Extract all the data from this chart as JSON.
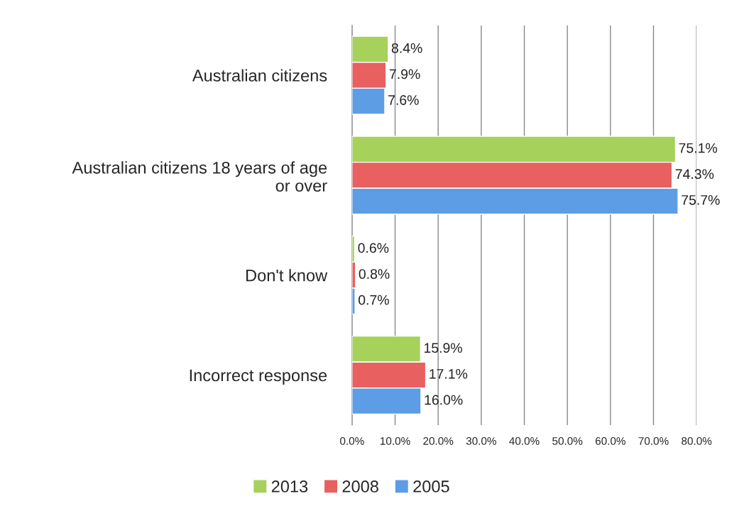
{
  "chart_data": {
    "type": "bar",
    "orientation": "horizontal",
    "categories": [
      "Australian citizens",
      "Australian citizens 18 years of age\nor over",
      "Don't know",
      "Incorrect response"
    ],
    "series": [
      {
        "name": "2013",
        "color": "#a6d15a",
        "values": [
          8.4,
          75.1,
          0.6,
          15.9
        ],
        "value_labels": [
          "8.4%",
          "75.1%",
          "0.6%",
          "15.9%"
        ]
      },
      {
        "name": "2008",
        "color": "#e86060",
        "values": [
          7.9,
          74.3,
          0.8,
          17.1
        ],
        "value_labels": [
          "7.9%",
          "74.3%",
          "0.8%",
          "17.1%"
        ]
      },
      {
        "name": "2005",
        "color": "#5d9de6",
        "values": [
          7.6,
          75.7,
          0.7,
          16.0
        ],
        "value_labels": [
          "7.6%",
          "75.7%",
          "0.7%",
          "16.0%"
        ]
      }
    ],
    "xlim": [
      0,
      80
    ],
    "xticks": [
      {
        "value": 0,
        "label": "0.0%"
      },
      {
        "value": 10,
        "label": "10.0%"
      },
      {
        "value": 20,
        "label": "20.0%"
      },
      {
        "value": 30,
        "label": "30.0%"
      },
      {
        "value": 40,
        "label": "40.0%"
      },
      {
        "value": 50,
        "label": "50.0%"
      },
      {
        "value": 60,
        "label": "60.0%"
      },
      {
        "value": 70,
        "label": "70.0%"
      },
      {
        "value": 80,
        "label": "80.0%"
      }
    ],
    "grid": "x",
    "legend": "bottom"
  }
}
